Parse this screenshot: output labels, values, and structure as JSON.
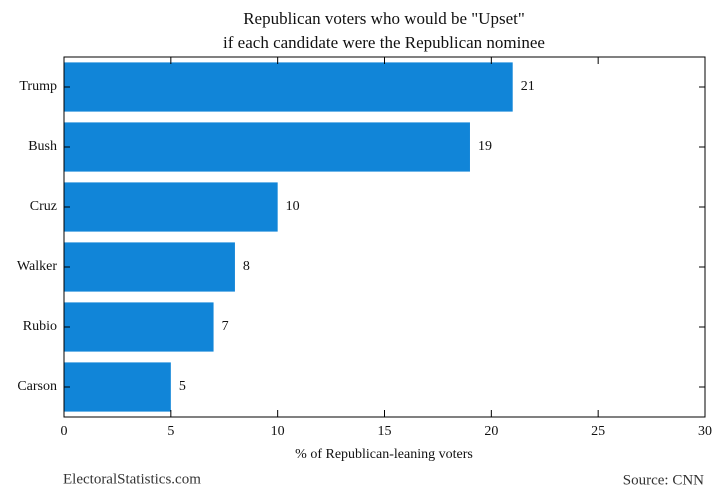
{
  "chart_data": {
    "type": "bar",
    "orientation": "horizontal",
    "title": [
      "Republican voters who would be \"Upset\"",
      "if each candidate were the Republican nominee"
    ],
    "categories": [
      "Trump",
      "Bush",
      "Cruz",
      "Walker",
      "Rubio",
      "Carson"
    ],
    "values": [
      21,
      19,
      10,
      8,
      7,
      5
    ],
    "color": "#1185d8",
    "xlabel": "% of Republican-leaning voters",
    "xlim": [
      0,
      30
    ],
    "xticks": [
      0,
      5,
      10,
      15,
      20,
      25,
      30
    ],
    "credit": "ElectoralStatistics.com",
    "source": "Source: CNN"
  }
}
